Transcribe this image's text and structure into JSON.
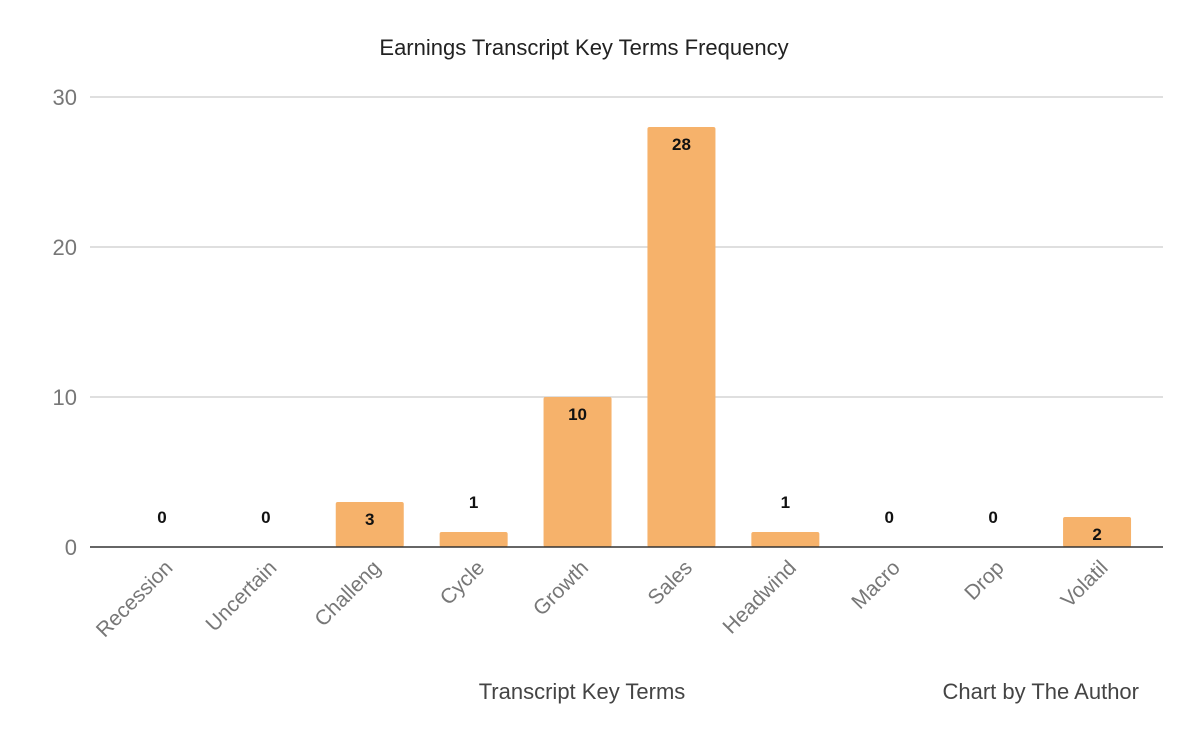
{
  "chart_data": {
    "type": "bar",
    "title": "Earnings Transcript Key Terms Frequency",
    "xlabel": "Transcript Key Terms",
    "ylabel": "",
    "categories": [
      "Recession",
      "Uncertain",
      "Challeng",
      "Cycle",
      "Growth",
      "Sales",
      "Headwind",
      "Macro",
      "Drop",
      "Volatil"
    ],
    "values": [
      0,
      0,
      3,
      1,
      10,
      28,
      1,
      0,
      0,
      2
    ],
    "ylim": [
      0,
      30
    ],
    "yticks": [
      0,
      10,
      20,
      30
    ],
    "grid": true,
    "data_labels": true,
    "bar_color": "#f6b26b",
    "credit": "Chart by The Author"
  }
}
